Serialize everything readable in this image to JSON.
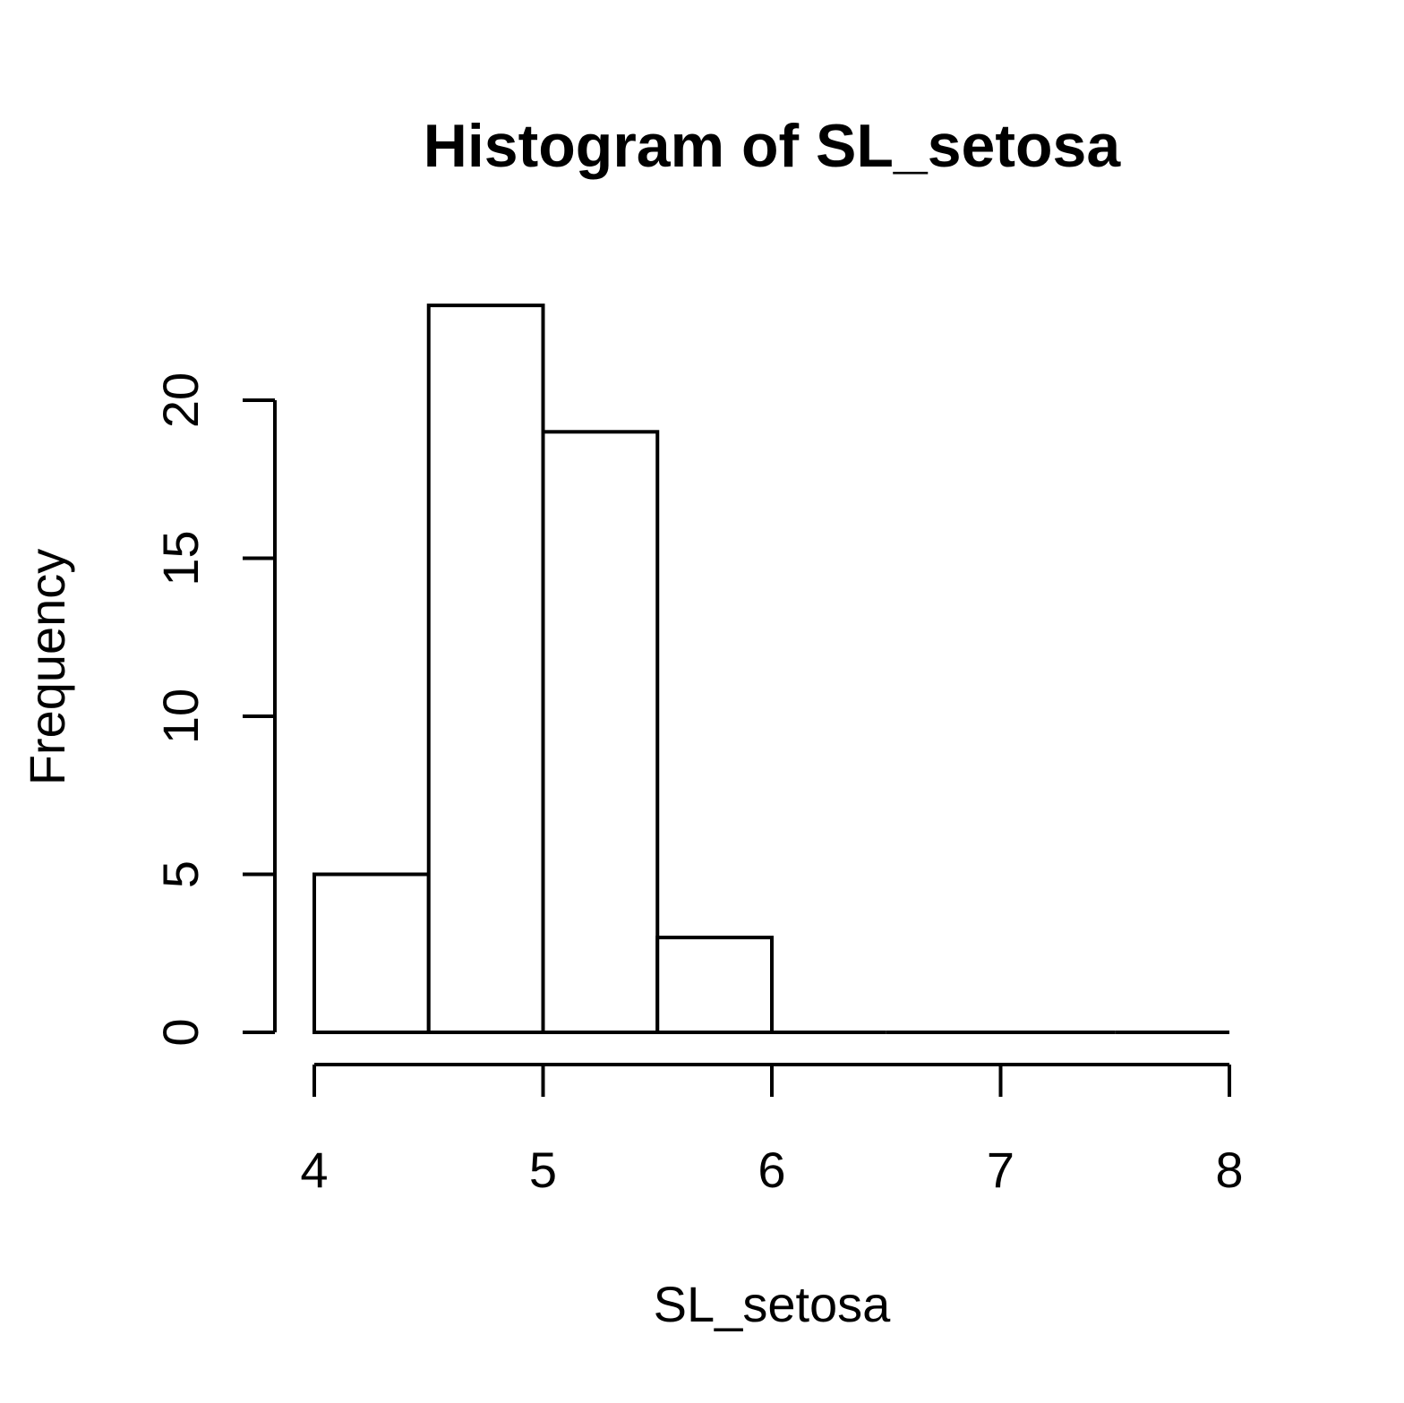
{
  "chart_data": {
    "type": "bar",
    "title": "Histogram of SL_setosa",
    "xlabel": "SL_setosa",
    "ylabel": "Frequency",
    "bins": [
      {
        "start": 4.0,
        "end": 4.5,
        "count": 5
      },
      {
        "start": 4.5,
        "end": 5.0,
        "count": 23
      },
      {
        "start": 5.0,
        "end": 5.5,
        "count": 19
      },
      {
        "start": 5.5,
        "end": 6.0,
        "count": 3
      },
      {
        "start": 6.0,
        "end": 6.5,
        "count": 0
      },
      {
        "start": 6.5,
        "end": 7.0,
        "count": 0
      },
      {
        "start": 7.0,
        "end": 7.5,
        "count": 0
      },
      {
        "start": 7.5,
        "end": 8.0,
        "count": 0
      }
    ],
    "xlim": [
      4,
      8
    ],
    "ylim": [
      0,
      23
    ],
    "x_ticks": [
      "4",
      "5",
      "6",
      "7",
      "8"
    ],
    "y_ticks": [
      "0",
      "5",
      "10",
      "15",
      "20"
    ],
    "grid": false,
    "legend": "none"
  }
}
